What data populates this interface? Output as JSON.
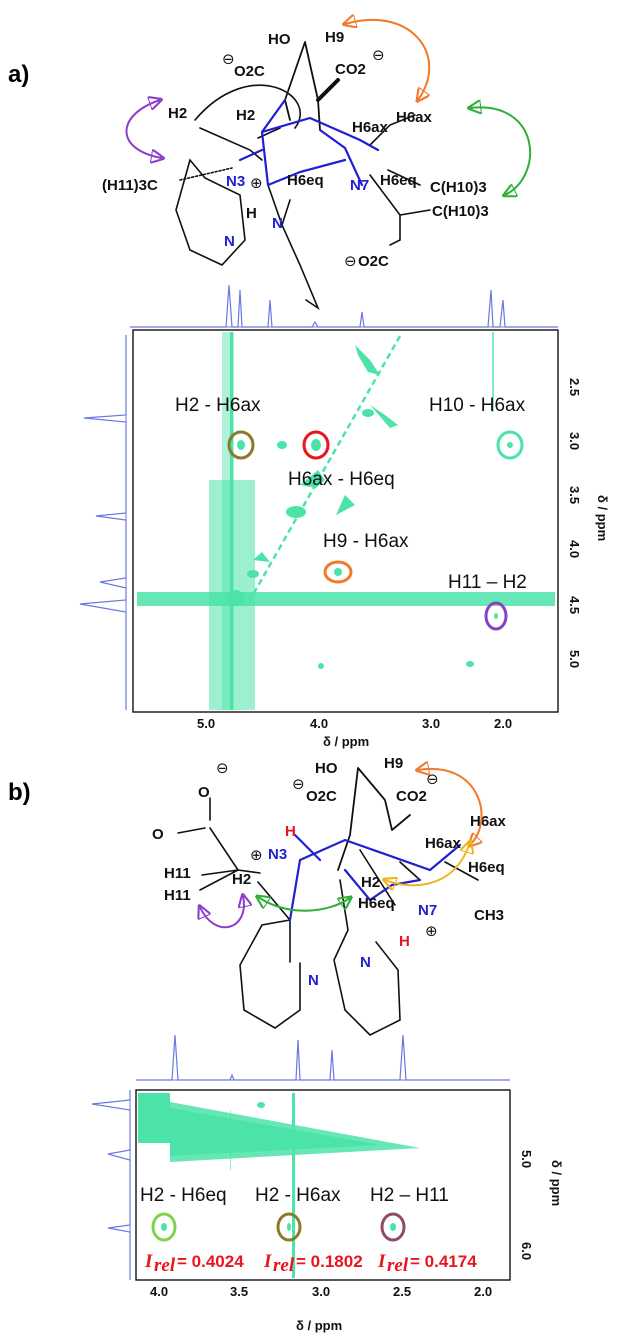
{
  "panels": [
    {
      "label": "a)",
      "structure": {
        "atoms": [
          "HO",
          "H9",
          "CO2",
          "O2C",
          "H2",
          "H2",
          "H6ax",
          "H6ax",
          "H6eq",
          "H6eq",
          "N3",
          "N7",
          "N",
          "N",
          "H",
          "(H11)3C",
          "C(H10)3",
          "C(H10)3",
          "O2C"
        ]
      },
      "annotations": [
        "H2 - H6ax",
        "H10 - H6ax",
        "H6ax - H6eq",
        "H9 - H6ax",
        "H11 – H2"
      ],
      "colors": {
        "brown": "#8a7a2a",
        "red": "#e8141e",
        "mint": "#4be3a8",
        "orange": "#f07a2a",
        "purple": "#8b3fc9"
      },
      "x_ticks": [
        "5.0",
        "4.0",
        "3.0",
        "2.0"
      ],
      "y_ticks": [
        "2.5",
        "3.0",
        "3.5",
        "4.0",
        "4.5",
        "5.0"
      ],
      "x_label": "δ / ppm",
      "y_label": "δ / ppm"
    },
    {
      "label": "b)",
      "structure": {
        "atoms": [
          "HO",
          "H9",
          "CO2",
          "O2C",
          "H",
          "O",
          "O",
          "N3",
          "H11",
          "H11",
          "H2",
          "H2",
          "H6ax",
          "H6ax",
          "H6eq",
          "H6eq",
          "N7",
          "H",
          "CH3",
          "N",
          "N"
        ]
      },
      "annotations": [
        "H2 - H6eq",
        "H2 - H6ax",
        "H2 – H11"
      ],
      "irel_prefix": "I",
      "irel_sub": "rel",
      "irel_values": [
        "= 0.4024",
        "= 0.1802",
        "= 0.4174"
      ],
      "x_ticks": [
        "4.0",
        "3.5",
        "3.0",
        "2.5",
        "2.0"
      ],
      "y_ticks": [
        "5.0",
        "6.0"
      ],
      "x_label": "δ / ppm",
      "y_label": "δ / ppm"
    }
  ]
}
